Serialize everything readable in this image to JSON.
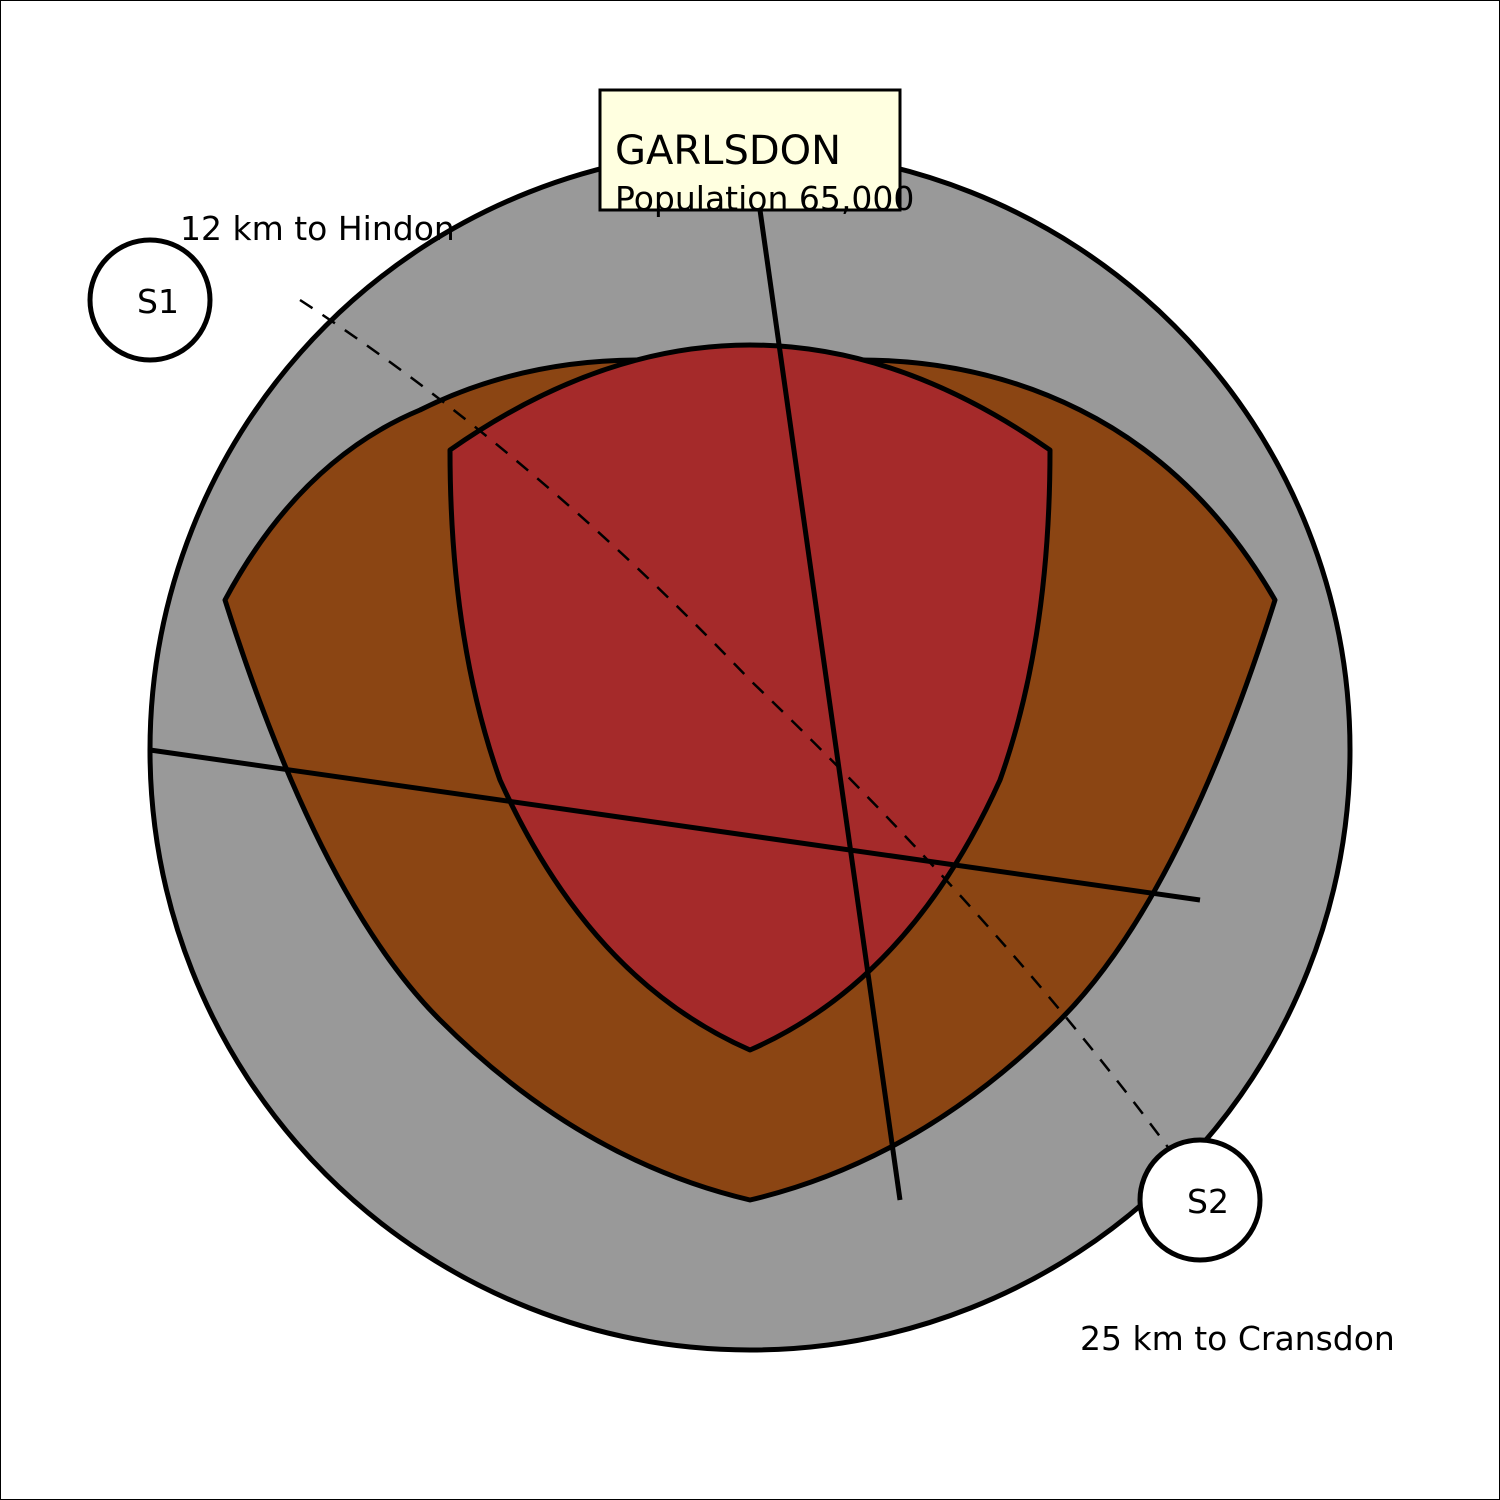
{
  "town": {
    "name": "GARLSDON",
    "population": "Population 65,000"
  },
  "settlements": [
    {
      "id": "S1",
      "distance_label": "12 km to Hindon"
    },
    {
      "id": "S2",
      "distance_label": "25 km to Cransdon"
    }
  ],
  "zones": {
    "outer": {
      "color": "#999999"
    },
    "middle": {
      "color": "#8B4513"
    },
    "core": {
      "color": "#A52A2A"
    }
  },
  "colors": {
    "label_box": "#FFFFE0",
    "outline": "#000000",
    "background": "#FFFFFF"
  }
}
